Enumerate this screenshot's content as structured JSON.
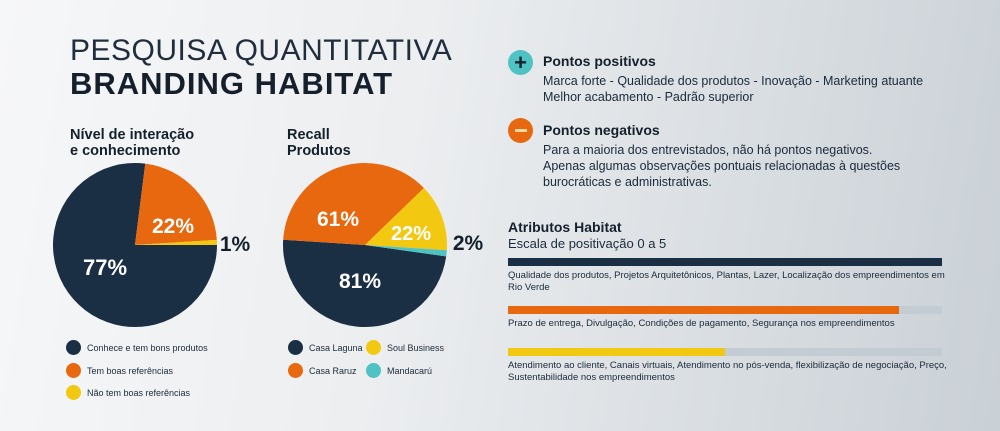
{
  "header": {
    "title_line1": "PESQUISA QUANTITATIVA",
    "title_line2": "BRANDING  HABITAT"
  },
  "colors": {
    "navy": "#1a2e44",
    "orange": "#e8680f",
    "yellow": "#f2c811",
    "teal": "#4fc2c4",
    "track": "#c3ccd3"
  },
  "chart_data": [
    {
      "type": "pie",
      "title_line1": "Nível de interação",
      "title_line2": "e conhecimento",
      "slices": [
        {
          "label": "Conhece e tem bons produtos",
          "value": 77,
          "text": "77%",
          "color": "#1a2e44"
        },
        {
          "label": "Tem boas referências",
          "value": 22,
          "text": "22%",
          "color": "#e8680f"
        },
        {
          "label": "Não tem boas referências",
          "value": 1,
          "text": "1%",
          "color": "#f2c811"
        }
      ]
    },
    {
      "type": "pie",
      "title_line1": "Recall",
      "title_line2": "Produtos",
      "slices": [
        {
          "label": "Casa Laguna",
          "value": 81,
          "text": "81%",
          "color": "#1a2e44"
        },
        {
          "label": "Casa Raruz",
          "value": 61,
          "text": "61%",
          "color": "#e8680f"
        },
        {
          "label": "Soul Business",
          "value": 22,
          "text": "22%",
          "color": "#f2c811"
        },
        {
          "label": "Mandacarú",
          "value": 2,
          "text": "2%",
          "color": "#4fc2c4"
        }
      ]
    },
    {
      "type": "bar",
      "title": "Atributos Habitat",
      "subtitle": "Escala de positivação 0 a 5",
      "xlim": [
        0,
        5
      ],
      "bars": [
        {
          "value": 5.0,
          "color": "#1a2e44",
          "label": "Qualidade dos produtos, Projetos Arquitetônicos, Plantas, Lazer, Localização dos empreendimentos em Rio Verde"
        },
        {
          "value": 4.5,
          "color": "#e8680f",
          "label": "Prazo de entrega, Divulgação, Condições de pagamento, Segurança nos empreendimentos"
        },
        {
          "value": 2.5,
          "color": "#f2c811",
          "label": "Atendimento ao cliente, Canais virtuais, Atendimento no pós-venda, flexibilização de negociação, Preço, Sustentabilidade nos empreendimentos"
        }
      ]
    }
  ],
  "positives": {
    "icon": "plus-icon",
    "title": "Pontos positivos",
    "line1": "Marca forte - Qualidade dos produtos - Inovação - Marketing atuante",
    "line2": "Melhor acabamento - Padrão superior"
  },
  "negatives": {
    "icon": "minus-icon",
    "title": "Pontos negativos",
    "line1": "Para a maioria dos entrevistados, não há pontos negativos.",
    "line2": "Apenas algumas observações pontuais relacionadas à questões",
    "line3": "burocráticas e administrativas."
  }
}
